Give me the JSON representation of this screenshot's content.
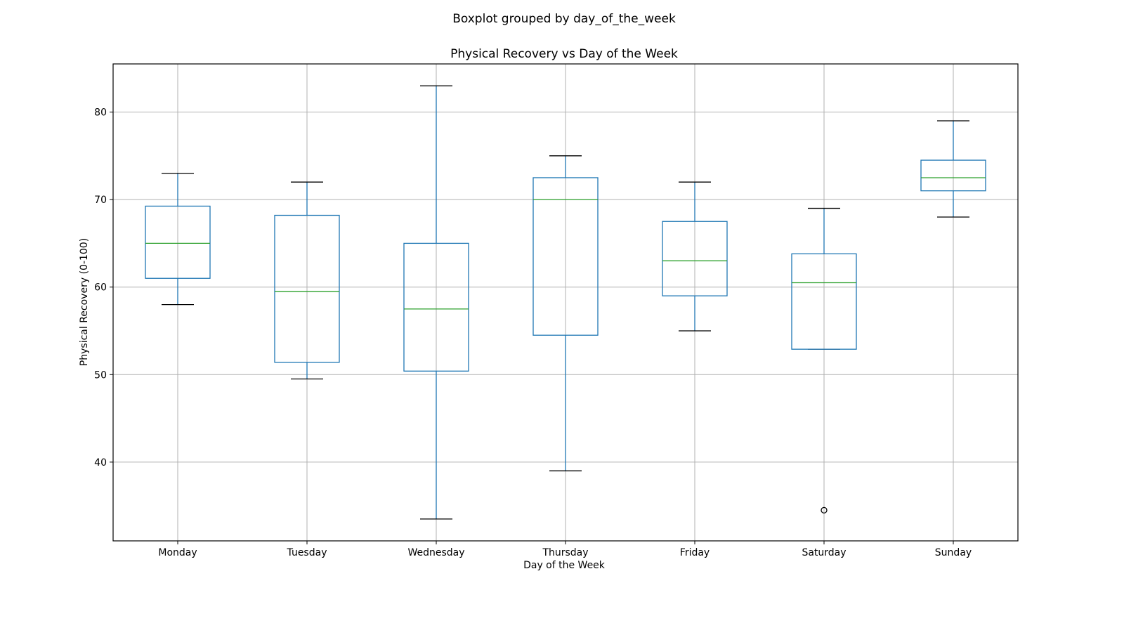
{
  "figure": {
    "suptitle": "Boxplot grouped by day_of_the_week"
  },
  "chart_data": {
    "type": "boxplot",
    "title": "Physical Recovery vs Day of the Week",
    "xlabel": "Day of the Week",
    "ylabel": "Physical Recovery (0-100)",
    "ylim": [
      31,
      85.5
    ],
    "yticks": [
      40,
      50,
      60,
      70,
      80
    ],
    "grid": true,
    "categories": [
      "Monday",
      "Tuesday",
      "Wednesday",
      "Thursday",
      "Friday",
      "Saturday",
      "Sunday"
    ],
    "boxes": [
      {
        "category": "Monday",
        "whisker_low": 58,
        "q1": 61,
        "median": 65,
        "q3": 69.25,
        "whisker_high": 73,
        "outliers": []
      },
      {
        "category": "Tuesday",
        "whisker_low": 49.5,
        "q1": 51.4,
        "median": 59.5,
        "q3": 68.2,
        "whisker_high": 72,
        "outliers": []
      },
      {
        "category": "Wednesday",
        "whisker_low": 33.5,
        "q1": 50.4,
        "median": 57.5,
        "q3": 65,
        "whisker_high": 83,
        "outliers": []
      },
      {
        "category": "Thursday",
        "whisker_low": 39,
        "q1": 54.5,
        "median": 70,
        "q3": 72.5,
        "whisker_high": 75,
        "outliers": []
      },
      {
        "category": "Friday",
        "whisker_low": 55,
        "q1": 59,
        "median": 63,
        "q3": 67.5,
        "whisker_high": 72,
        "outliers": []
      },
      {
        "category": "Saturday",
        "whisker_low": 52.9,
        "q1": 52.9,
        "median": 60.5,
        "q3": 63.8,
        "whisker_high": 69,
        "outliers": [
          34.5
        ]
      },
      {
        "category": "Sunday",
        "whisker_low": 68,
        "q1": 71,
        "median": 72.5,
        "q3": 74.5,
        "whisker_high": 79,
        "outliers": []
      }
    ],
    "colors": {
      "box": "#1f77b4",
      "whisker": "#1f77b4",
      "cap": "#000000",
      "median": "#2ca02c",
      "grid": "#b0b0b0",
      "flier": "#000000"
    }
  }
}
